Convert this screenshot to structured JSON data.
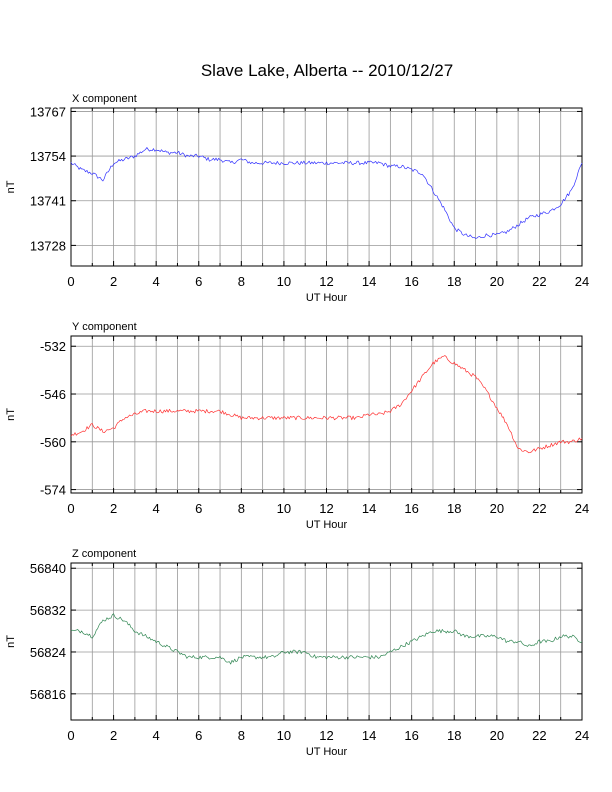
{
  "title": "Slave Lake, Alberta -- 2010/12/27",
  "chart_data": [
    {
      "type": "line",
      "panel_label": "X component",
      "xlabel": "UT Hour",
      "ylabel": "nT",
      "xlim": [
        0,
        24
      ],
      "ylim": [
        13722,
        13768
      ],
      "xticks": [
        "0",
        "2",
        "4",
        "6",
        "8",
        "10",
        "12",
        "14",
        "16",
        "18",
        "20",
        "22",
        "24"
      ],
      "yticks": [
        13767,
        13754,
        13741,
        13728
      ],
      "grid": true,
      "color": "#3333ff",
      "x": [
        0,
        0.5,
        1,
        1.5,
        2,
        2.5,
        3,
        3.5,
        4,
        4.5,
        5,
        5.5,
        6,
        6.5,
        7,
        7.5,
        8,
        8.5,
        9,
        9.5,
        10,
        10.5,
        11,
        11.5,
        12,
        12.5,
        13,
        13.5,
        14,
        14.5,
        15,
        15.5,
        16,
        16.5,
        17,
        17.5,
        18,
        18.5,
        19,
        19.5,
        20,
        20.5,
        21,
        21.5,
        22,
        22.5,
        23,
        23.5,
        24
      ],
      "values": [
        13752,
        13750,
        13749,
        13747,
        13752,
        13753,
        13754,
        13756,
        13756,
        13755,
        13755,
        13754,
        13754,
        13753,
        13753,
        13752,
        13753,
        13752,
        13752,
        13752,
        13752,
        13752,
        13752,
        13752,
        13752,
        13752,
        13752,
        13752,
        13752,
        13752,
        13751,
        13751,
        13750,
        13749,
        13744,
        13739,
        13733,
        13731,
        13730,
        13731,
        13731,
        13732,
        13734,
        13736,
        13737,
        13738,
        13740,
        13744,
        13752
      ]
    },
    {
      "type": "line",
      "panel_label": "Y component",
      "xlabel": "UT Hour",
      "ylabel": "nT",
      "xlim": [
        0,
        24
      ],
      "ylim": [
        -575,
        -529
      ],
      "xticks": [
        "0",
        "2",
        "4",
        "6",
        "8",
        "10",
        "12",
        "14",
        "16",
        "18",
        "20",
        "22",
        "24"
      ],
      "yticks": [
        -532,
        -546,
        -560,
        -574
      ],
      "grid": true,
      "color": "#ff3333",
      "x": [
        0,
        0.5,
        1,
        1.5,
        2,
        2.5,
        3,
        3.5,
        4,
        4.5,
        5,
        5.5,
        6,
        6.5,
        7,
        7.5,
        8,
        8.5,
        9,
        9.5,
        10,
        10.5,
        11,
        11.5,
        12,
        12.5,
        13,
        13.5,
        14,
        14.5,
        15,
        15.5,
        16,
        16.5,
        17,
        17.5,
        18,
        18.5,
        19,
        19.5,
        20,
        20.5,
        21,
        21.5,
        22,
        22.5,
        23,
        23.5,
        24
      ],
      "values": [
        -558,
        -557,
        -555,
        -557,
        -556,
        -553,
        -552,
        -551,
        -551,
        -551,
        -551,
        -551,
        -551,
        -551,
        -551,
        -552,
        -553,
        -553,
        -553,
        -553,
        -553,
        -553,
        -553,
        -553,
        -553,
        -553,
        -553,
        -553,
        -552,
        -552,
        -551,
        -549,
        -545,
        -541,
        -537,
        -535,
        -537,
        -539,
        -541,
        -545,
        -550,
        -555,
        -562,
        -563,
        -562,
        -561,
        -560,
        -560,
        -559
      ]
    },
    {
      "type": "line",
      "panel_label": "Z component",
      "xlabel": "UT Hour",
      "ylabel": "nT",
      "xlim": [
        0,
        24
      ],
      "ylim": [
        56811,
        56841
      ],
      "xticks": [
        "0",
        "2",
        "4",
        "6",
        "8",
        "10",
        "12",
        "14",
        "16",
        "18",
        "20",
        "22",
        "24"
      ],
      "yticks": [
        56840,
        56832,
        56824,
        56816
      ],
      "grid": true,
      "color": "#338855",
      "x": [
        0,
        0.5,
        1,
        1.5,
        2,
        2.5,
        3,
        3.5,
        4,
        4.5,
        5,
        5.5,
        6,
        6.5,
        7,
        7.5,
        8,
        8.5,
        9,
        9.5,
        10,
        10.5,
        11,
        11.5,
        12,
        12.5,
        13,
        13.5,
        14,
        14.5,
        15,
        15.5,
        16,
        16.5,
        17,
        17.5,
        18,
        18.5,
        19,
        19.5,
        20,
        20.5,
        21,
        21.5,
        22,
        22.5,
        23,
        23.5,
        24
      ],
      "values": [
        56828,
        56828,
        56827,
        56830,
        56831,
        56830,
        56828,
        56827,
        56826,
        56825,
        56824,
        56823,
        56823,
        56823,
        56823,
        56822,
        56823,
        56823,
        56823,
        56823,
        56824,
        56824,
        56824,
        56823,
        56823,
        56823,
        56823,
        56823,
        56823,
        56823,
        56824,
        56825,
        56826,
        56827,
        56828,
        56828,
        56828,
        56827,
        56827,
        56827,
        56827,
        56826,
        56826,
        56825,
        56826,
        56826,
        56827,
        56827,
        56826
      ]
    }
  ]
}
